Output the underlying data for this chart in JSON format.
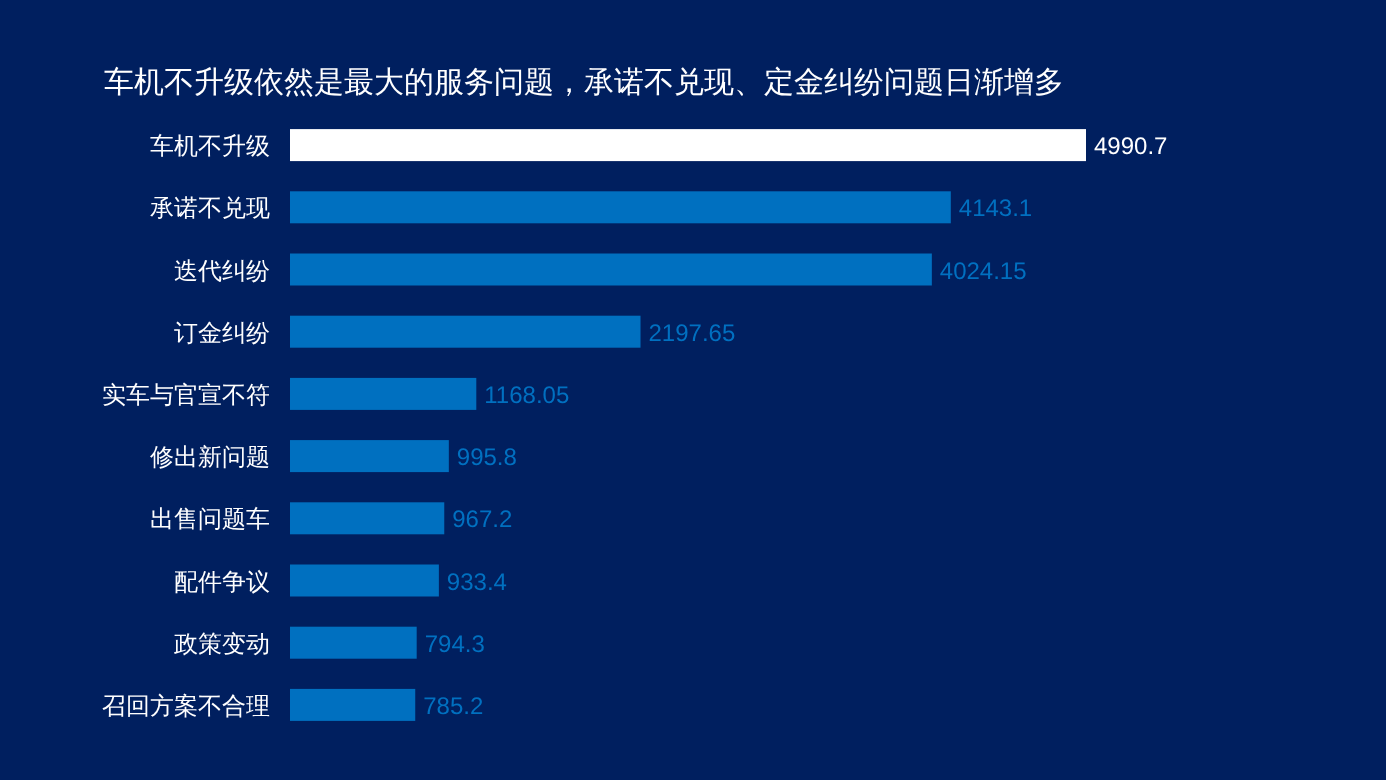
{
  "chart_data": {
    "type": "bar",
    "orientation": "horizontal",
    "title": "车机不升级依然是最大的服务问题，承诺不兑现、定金纠纷问题日渐增多",
    "categories": [
      "车机不升级",
      "承诺不兑现",
      "迭代纠纷",
      "订金纠纷",
      "实车与官宣不符",
      "修出新问题",
      "出售问题车",
      "配件争议",
      "政策变动",
      "召回方案不合理"
    ],
    "values": [
      4990.7,
      4143.1,
      4024.15,
      2197.65,
      1168.05,
      995.8,
      967.2,
      933.4,
      794.3,
      785.2
    ],
    "colors": [
      "#ffffff",
      "#0070c0",
      "#0070c0",
      "#0070c0",
      "#0070c0",
      "#0070c0",
      "#0070c0",
      "#0070c0",
      "#0070c0",
      "#0070c0"
    ],
    "data_labels": true
  }
}
